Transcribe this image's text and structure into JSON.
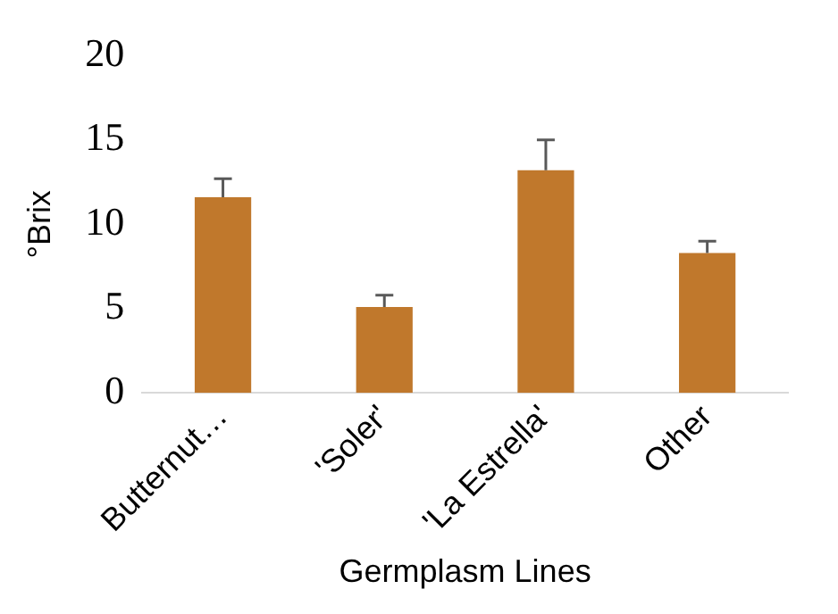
{
  "chart_data": {
    "type": "bar",
    "xlabel": "Germplasm Lines",
    "ylabel": "°Brix",
    "categories": [
      "Butternut…",
      "'Soler'",
      "'La Estrella'",
      "Other"
    ],
    "values": [
      11.6,
      5.1,
      13.2,
      8.3
    ],
    "errors": [
      [
        11.6,
        12.7
      ],
      [
        5.1,
        5.8
      ],
      [
        13.2,
        15.0
      ],
      [
        8.3,
        9.0
      ]
    ],
    "color": "#c0782c",
    "ylim": [
      0,
      20
    ],
    "yticks": [
      0,
      5,
      10,
      15,
      20
    ],
    "grid": false
  }
}
